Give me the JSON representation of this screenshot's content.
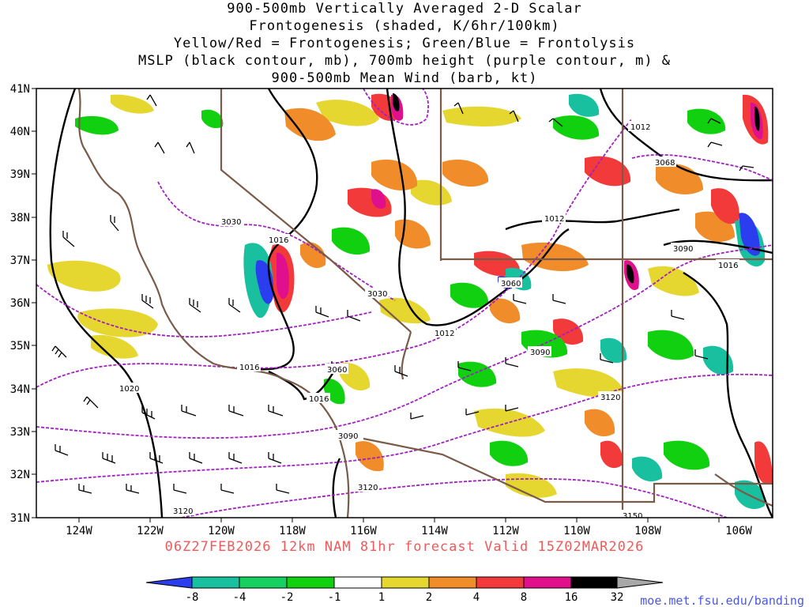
{
  "title_lines": [
    "900-500mb Vertically Averaged 2-D Scalar",
    "Frontogenesis (shaded, K/6hr/100km)",
    "Yellow/Red = Frontogenesis;  Green/Blue = Frontolysis",
    "MSLP (black contour, mb), 700mb height (purple contour, m) &",
    "900-500mb Mean Wind (barb, kt)"
  ],
  "lat_labels": [
    "41N",
    "40N",
    "39N",
    "38N",
    "37N",
    "36N",
    "35N",
    "34N",
    "33N",
    "32N",
    "31N"
  ],
  "lon_labels": [
    "124W",
    "122W",
    "120W",
    "118W",
    "116W",
    "114W",
    "112W",
    "110W",
    "108W",
    "106W"
  ],
  "forecast_label": "06Z27FEB2026 12km NAM 81hr forecast Valid 15Z02MAR2026",
  "colorbar": {
    "labels": [
      "-8",
      "-4",
      "-2",
      "-1",
      "1",
      "2",
      "4",
      "8",
      "16",
      "32"
    ],
    "colors": [
      "#2a3ef0",
      "#19c0a0",
      "#16d060",
      "#11d010",
      "#ffffff",
      "#e6d630",
      "#f08c2a",
      "#f23a3a",
      "#e0108c",
      "#000000",
      "#a8a8a8"
    ]
  },
  "credit": "moe.met.fsu.edu/banding",
  "mslp_labels": [
    "1012",
    "1012",
    "1016",
    "1016",
    "1016",
    "1016",
    "1012",
    "1020"
  ],
  "height_labels": [
    "3030",
    "3030",
    "3060",
    "3060",
    "3068",
    "3090",
    "3090",
    "3090",
    "3120",
    "3120",
    "3120",
    "3150"
  ]
}
